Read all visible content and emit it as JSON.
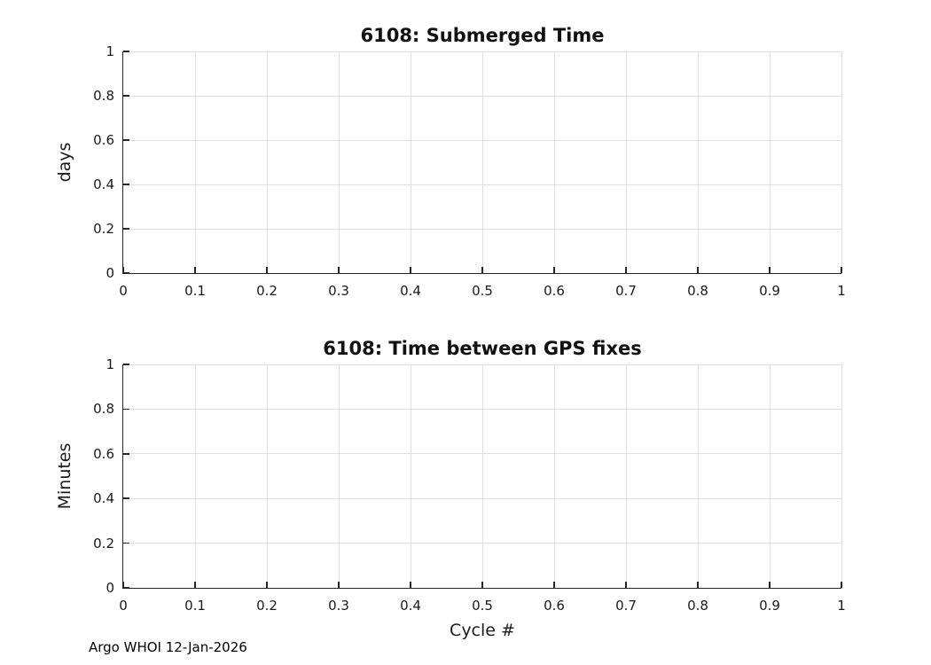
{
  "figure": {
    "background": "#ffffff",
    "axis_color": "#262626",
    "grid_color": "#e0e0e0",
    "text_color": "#1a1a1a",
    "footer": "Argo WHOI 12-Jan-2026"
  },
  "chart_data": [
    {
      "type": "line",
      "title": "6108: Submerged Time",
      "xlabel": "",
      "ylabel": "days",
      "xlim": [
        0,
        1
      ],
      "ylim": [
        0,
        1
      ],
      "x_ticks": [
        0,
        0.1,
        0.2,
        0.3,
        0.4,
        0.5,
        0.6,
        0.7,
        0.8,
        0.9,
        1
      ],
      "x_tick_labels": [
        "0",
        "0.1",
        "0.2",
        "0.3",
        "0.4",
        "0.5",
        "0.6",
        "0.7",
        "0.8",
        "0.9",
        "1"
      ],
      "y_ticks": [
        0,
        0.2,
        0.4,
        0.6,
        0.8,
        1
      ],
      "y_tick_labels": [
        "0",
        "0.2",
        "0.4",
        "0.6",
        "0.8",
        "1"
      ],
      "grid": true,
      "box": false,
      "legend": null,
      "series": []
    },
    {
      "type": "line",
      "title": "6108: Time between GPS fixes",
      "xlabel": "Cycle #",
      "ylabel": "Minutes",
      "xlim": [
        0,
        1
      ],
      "ylim": [
        0,
        1
      ],
      "x_ticks": [
        0,
        0.1,
        0.2,
        0.3,
        0.4,
        0.5,
        0.6,
        0.7,
        0.8,
        0.9,
        1
      ],
      "x_tick_labels": [
        "0",
        "0.1",
        "0.2",
        "0.3",
        "0.4",
        "0.5",
        "0.6",
        "0.7",
        "0.8",
        "0.9",
        "1"
      ],
      "y_ticks": [
        0,
        0.2,
        0.4,
        0.6,
        0.8,
        1
      ],
      "y_tick_labels": [
        "0",
        "0.2",
        "0.4",
        "0.6",
        "0.8",
        "1"
      ],
      "grid": true,
      "box": false,
      "legend": null,
      "series": []
    }
  ]
}
